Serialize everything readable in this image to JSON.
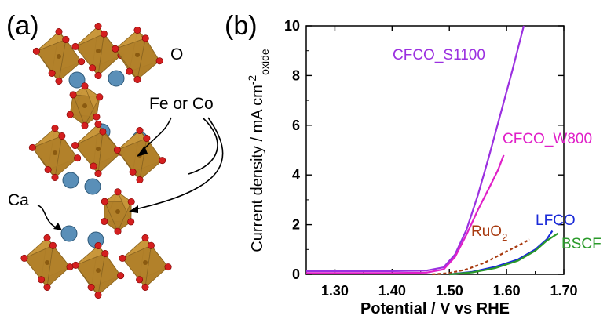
{
  "panels": {
    "a": {
      "label": "(a)"
    },
    "b": {
      "label": "(b)"
    }
  },
  "structure": {
    "labels": {
      "oxygen": "O",
      "b_site": "Fe or Co",
      "a_site": "Ca"
    },
    "colors": {
      "octahedron": "#c9973a",
      "octahedron_dark": "#8a6420",
      "oxygen": "#d41f1f",
      "calcium": "#5a8fb8"
    }
  },
  "chart_data": {
    "type": "line",
    "xlabel": "Potential / V vs RHE",
    "ylabel": "Current density / mA cm",
    "ylabel_sup": "-2",
    "ylabel_sub": "oxide",
    "xlim": [
      1.25,
      1.7
    ],
    "ylim": [
      0,
      10
    ],
    "xticks": [
      "1.30",
      "1.40",
      "1.50",
      "1.60",
      "1.70"
    ],
    "yticks": [
      "0",
      "2",
      "4",
      "6",
      "8",
      "10"
    ],
    "series": [
      {
        "name": "CFCO_S1100",
        "color": "#9b30e0",
        "dash": "solid",
        "x": [
          1.25,
          1.4,
          1.46,
          1.49,
          1.51,
          1.53,
          1.55,
          1.57,
          1.59,
          1.61,
          1.63
        ],
        "y": [
          0.13,
          0.13,
          0.15,
          0.28,
          0.8,
          1.8,
          3.2,
          4.8,
          6.5,
          8.2,
          10.0
        ]
      },
      {
        "name": "CFCO_W800",
        "color": "#e020c8",
        "dash": "solid",
        "x": [
          1.25,
          1.4,
          1.46,
          1.49,
          1.51,
          1.53,
          1.55,
          1.57,
          1.585,
          1.595
        ],
        "y": [
          0.05,
          0.05,
          0.07,
          0.2,
          0.7,
          1.6,
          2.6,
          3.5,
          4.2,
          4.8
        ]
      },
      {
        "name": "RuO",
        "name_sub": "2",
        "color": "#a83a10",
        "dash": "dashed",
        "x": [
          1.47,
          1.5,
          1.53,
          1.56,
          1.59,
          1.62,
          1.64
        ],
        "y": [
          0.0,
          0.05,
          0.2,
          0.45,
          0.8,
          1.15,
          1.4
        ]
      },
      {
        "name": "LFCO",
        "color": "#1a2ad8",
        "dash": "solid",
        "x": [
          1.5,
          1.54,
          1.58,
          1.62,
          1.65,
          1.67,
          1.68
        ],
        "y": [
          0.0,
          0.1,
          0.3,
          0.6,
          1.0,
          1.4,
          1.75
        ]
      },
      {
        "name": "BSCF",
        "color": "#2a9a2a",
        "dash": "solid",
        "x": [
          1.5,
          1.54,
          1.58,
          1.62,
          1.65,
          1.67,
          1.69
        ],
        "y": [
          0.0,
          0.08,
          0.25,
          0.55,
          0.95,
          1.35,
          1.65
        ]
      }
    ]
  }
}
